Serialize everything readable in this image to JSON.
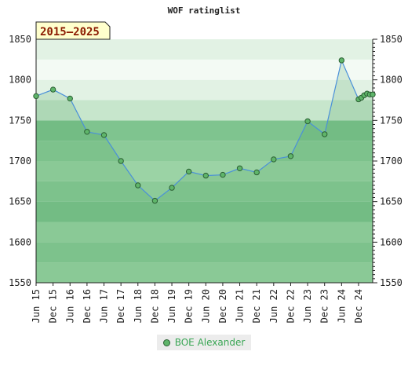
{
  "chart_data": {
    "type": "line",
    "title": "WOF ratinglist",
    "period_badge": "2015–2025",
    "ylim": [
      1550,
      1850
    ],
    "y_ticks": [
      1550,
      1600,
      1650,
      1700,
      1750,
      1800,
      1850
    ],
    "x_tick_labels": [
      "Jun 15",
      "Dec 15",
      "Jun 16",
      "Dec 16",
      "Jun 17",
      "Dec 17",
      "Jun 18",
      "Dec 18",
      "Jun 19",
      "Dec 19",
      "Jun 20",
      "Dec 20",
      "Jun 21",
      "Dec 21",
      "Jun 22",
      "Dec 22",
      "Jun 23",
      "Dec 23",
      "Jun 24",
      "Dec 24"
    ],
    "legend_position": "bottom-center",
    "grid": true,
    "series": [
      {
        "name": "BOE Alexander",
        "color": "#5fb56a",
        "line_color": "#4a90d9",
        "points": [
          {
            "x": "2015-06",
            "y": 1780
          },
          {
            "x": "2015-12",
            "y": 1788
          },
          {
            "x": "2016-06",
            "y": 1777
          },
          {
            "x": "2016-12",
            "y": 1736
          },
          {
            "x": "2017-06",
            "y": 1732
          },
          {
            "x": "2017-12",
            "y": 1700
          },
          {
            "x": "2018-06",
            "y": 1670
          },
          {
            "x": "2018-12",
            "y": 1651
          },
          {
            "x": "2019-06",
            "y": 1667
          },
          {
            "x": "2019-12",
            "y": 1687
          },
          {
            "x": "2020-06",
            "y": 1682
          },
          {
            "x": "2020-12",
            "y": 1683
          },
          {
            "x": "2021-06",
            "y": 1691
          },
          {
            "x": "2021-12",
            "y": 1686
          },
          {
            "x": "2022-06",
            "y": 1702
          },
          {
            "x": "2022-12",
            "y": 1706
          },
          {
            "x": "2023-06",
            "y": 1749
          },
          {
            "x": "2023-12",
            "y": 1733
          },
          {
            "x": "2024-06",
            "y": 1824
          },
          {
            "x": "2024-12",
            "y": 1776
          },
          {
            "x": "2025-01",
            "y": 1778
          },
          {
            "x": "2025-02",
            "y": 1781
          },
          {
            "x": "2025-03",
            "y": 1783
          },
          {
            "x": "2025-04",
            "y": 1782
          },
          {
            "x": "2025-05",
            "y": 1782
          }
        ]
      }
    ]
  }
}
